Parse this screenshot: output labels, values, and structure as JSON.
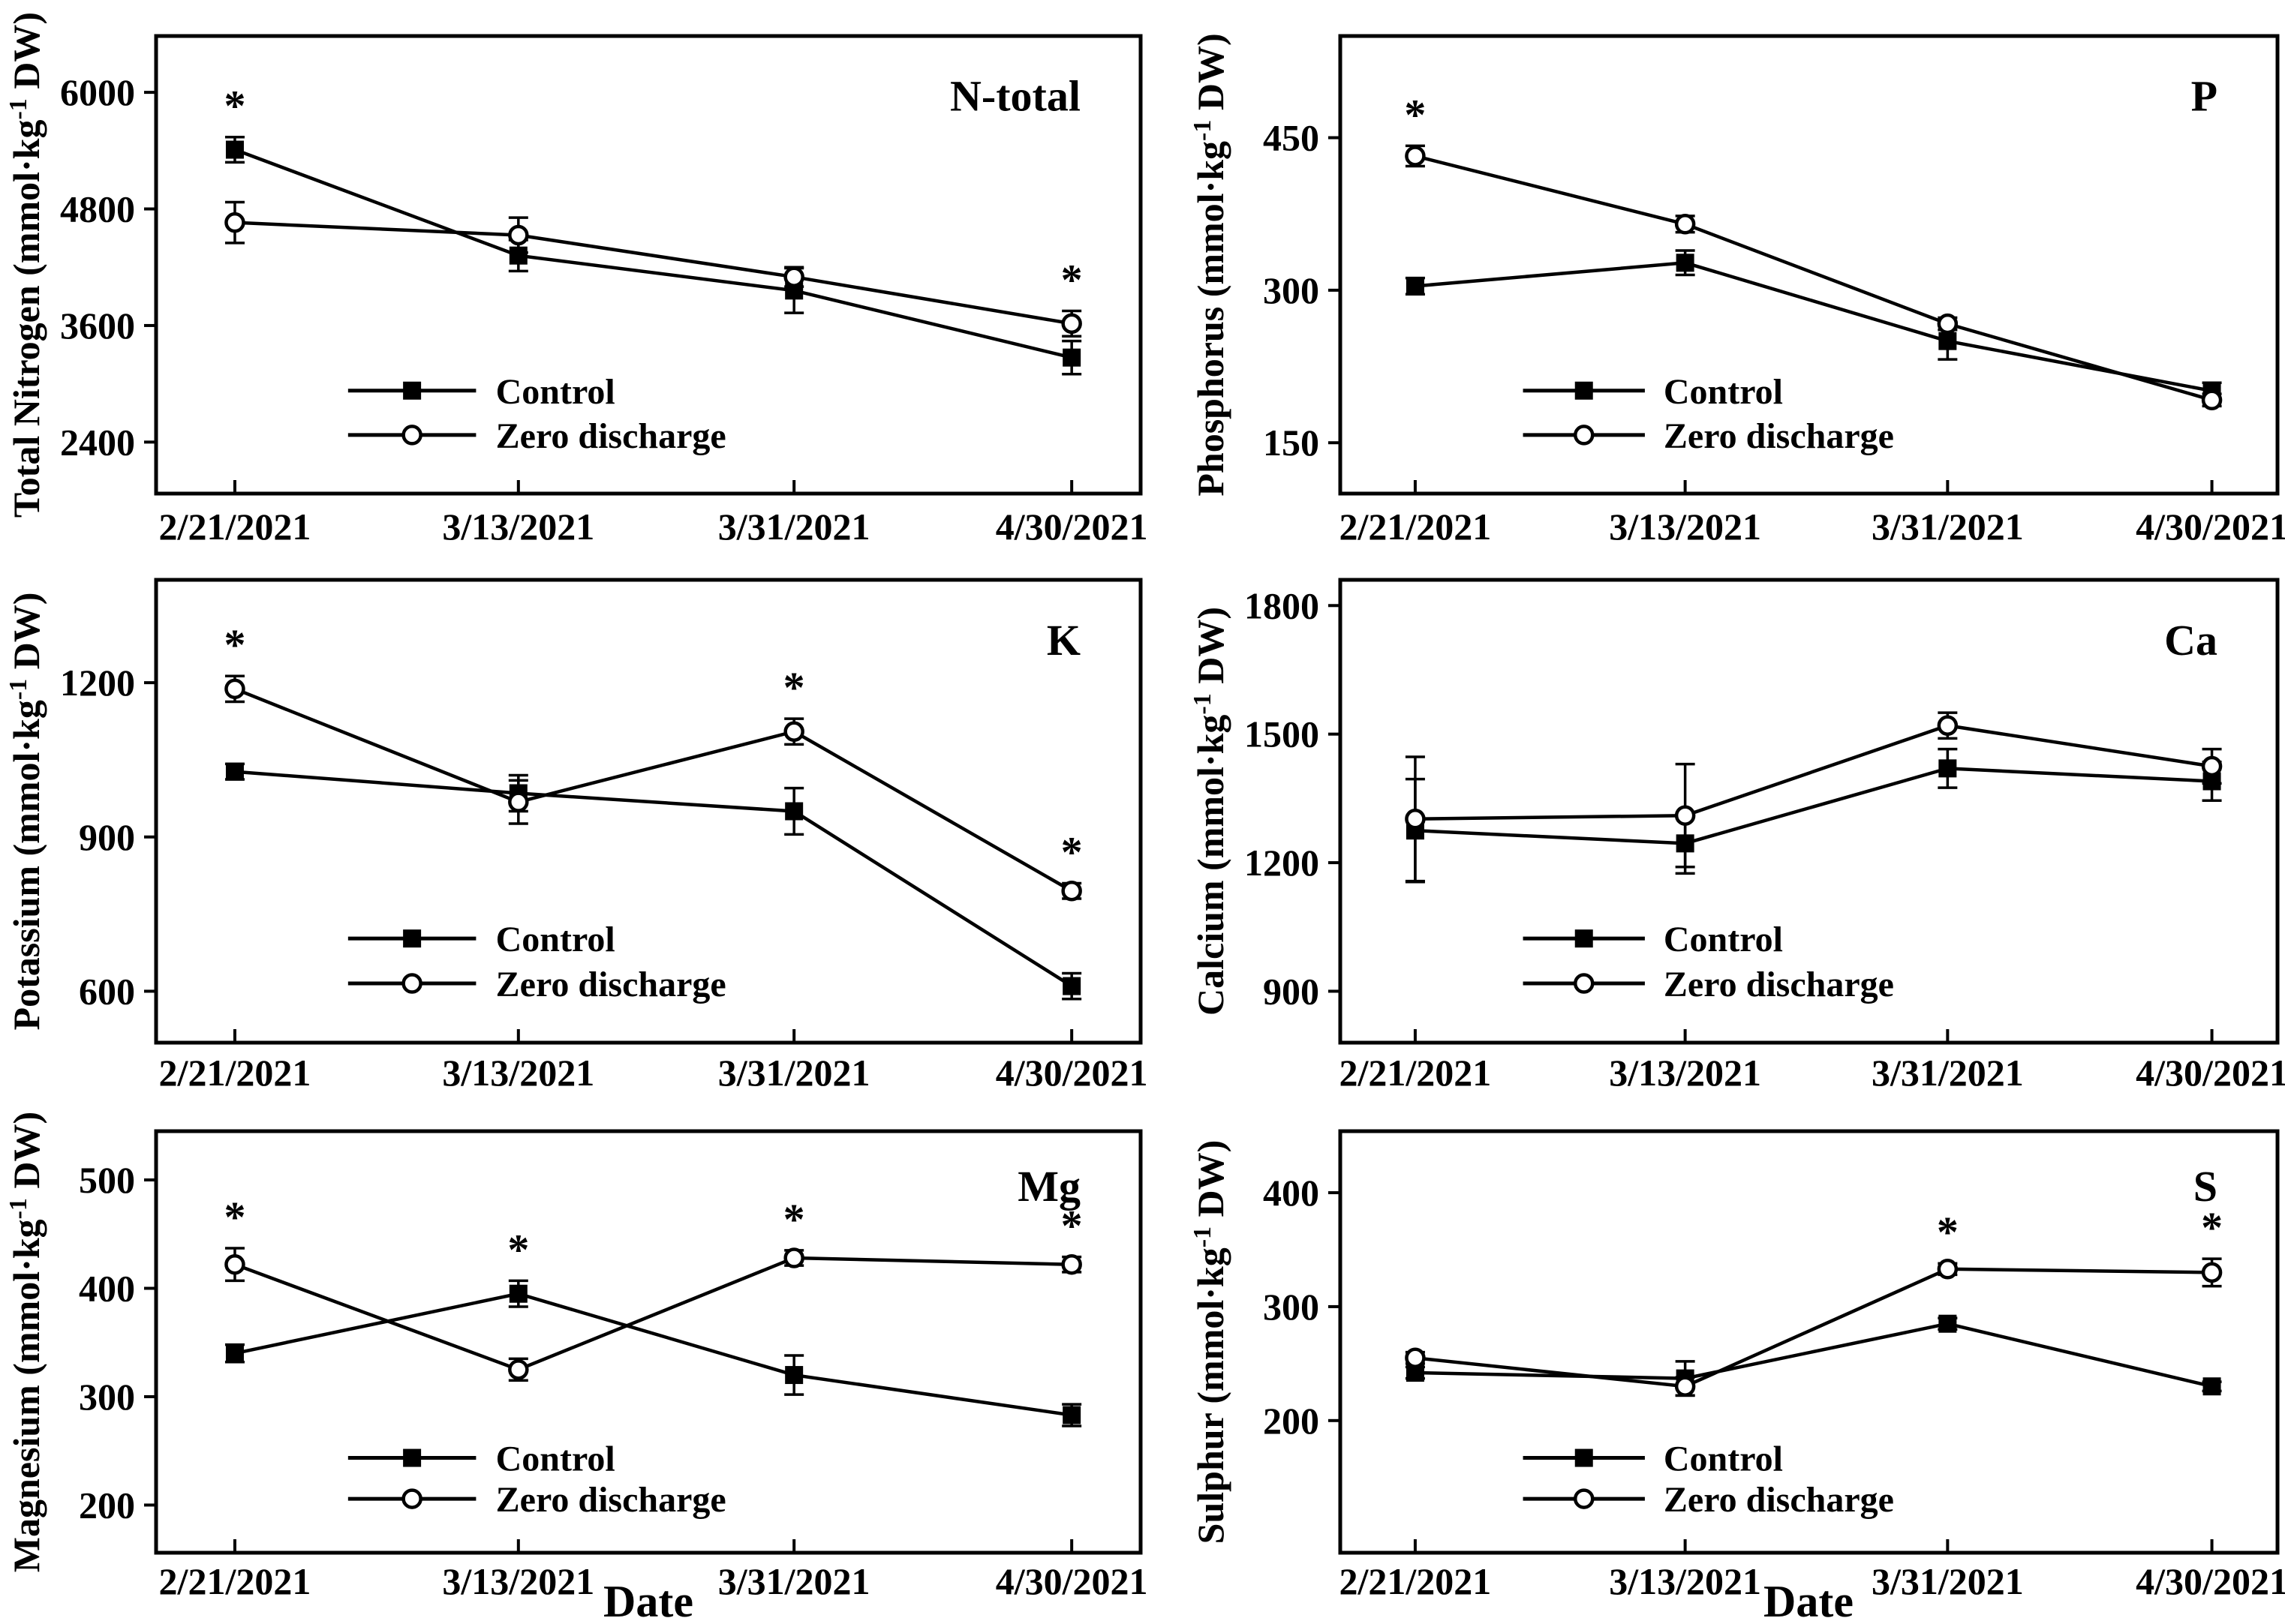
{
  "figure": {
    "background": "#ffffff",
    "ink_color": "#000000",
    "x_axis_title": "Date",
    "x_categories": [
      "2/21/2021",
      "3/13/2021",
      "3/31/2021",
      "4/30/2021"
    ],
    "legend_labels": [
      "Control",
      "Zero discharge"
    ],
    "significance_marker": "*"
  },
  "chart_data": [
    {
      "type": "line",
      "panel_label": "N-total",
      "ylabel": "Total Nitrogen (mmol·kg⁻¹ DW)",
      "x": [
        "2/21/2021",
        "3/13/2021",
        "3/31/2021",
        "4/30/2021"
      ],
      "yticks": [
        2400,
        3600,
        4800,
        6000
      ],
      "ylim": [
        1870,
        6580
      ],
      "grid": false,
      "legend_position": "lower-left",
      "series": [
        {
          "name": "Control",
          "marker": "filled-square",
          "values": [
            5410,
            4320,
            3960,
            3270
          ],
          "errors": [
            130,
            160,
            230,
            170
          ]
        },
        {
          "name": "Zero discharge",
          "marker": "open-circle",
          "values": [
            4660,
            4530,
            4100,
            3620
          ],
          "errors": [
            210,
            180,
            100,
            130
          ]
        }
      ],
      "asterisks": [
        {
          "x": 0,
          "series": 0
        },
        {
          "x": 3,
          "series": 1
        }
      ]
    },
    {
      "type": "line",
      "panel_label": "P",
      "ylabel": "Phosphorus (mmol·kg⁻¹ DW)",
      "x": [
        "2/21/2021",
        "3/13/2021",
        "3/31/2021",
        "4/30/2021"
      ],
      "yticks": [
        150,
        300,
        450
      ],
      "ylim": [
        100,
        550
      ],
      "grid": false,
      "legend_position": "lower-left",
      "series": [
        {
          "name": "Control",
          "marker": "filled-square",
          "values": [
            304,
            327,
            250,
            201
          ],
          "errors": [
            8,
            12,
            18,
            8
          ]
        },
        {
          "name": "Zero discharge",
          "marker": "open-circle",
          "values": [
            432,
            365,
            267,
            192
          ],
          "errors": [
            10,
            8,
            6,
            6
          ]
        }
      ],
      "asterisks": [
        {
          "x": 0,
          "series": 1
        }
      ]
    },
    {
      "type": "line",
      "panel_label": "K",
      "ylabel": "Potassium (mmol·kg⁻¹ DW)",
      "x": [
        "2/21/2021",
        "3/13/2021",
        "3/31/2021",
        "4/30/2021"
      ],
      "yticks": [
        600,
        900,
        1200
      ],
      "ylim": [
        500,
        1400
      ],
      "grid": false,
      "legend_position": "lower-left",
      "series": [
        {
          "name": "Control",
          "marker": "filled-square",
          "values": [
            1027,
            985,
            950,
            610
          ],
          "errors": [
            15,
            35,
            45,
            25
          ]
        },
        {
          "name": "Zero discharge",
          "marker": "open-circle",
          "values": [
            1188,
            968,
            1105,
            795
          ],
          "errors": [
            25,
            42,
            25,
            15
          ]
        }
      ],
      "asterisks": [
        {
          "x": 0,
          "series": 1
        },
        {
          "x": 2,
          "series": 1
        },
        {
          "x": 3,
          "series": 1
        }
      ]
    },
    {
      "type": "line",
      "panel_label": "Ca",
      "ylabel": "Calcium (mmol·kg⁻¹ DW)",
      "x": [
        "2/21/2021",
        "3/13/2021",
        "3/31/2021",
        "4/30/2021"
      ],
      "yticks": [
        900,
        1200,
        1500,
        1800
      ],
      "ylim": [
        780,
        1860
      ],
      "grid": false,
      "legend_position": "lower-left",
      "series": [
        {
          "name": "Control",
          "marker": "filled-square",
          "values": [
            1275,
            1245,
            1420,
            1390
          ],
          "errors": [
            120,
            70,
            45,
            45
          ]
        },
        {
          "name": "Zero discharge",
          "marker": "open-circle",
          "values": [
            1302,
            1310,
            1520,
            1425
          ],
          "errors": [
            145,
            120,
            30,
            40
          ]
        }
      ],
      "asterisks": []
    },
    {
      "type": "line",
      "panel_label": "Mg",
      "ylabel": "Magnesium (mmol·kg⁻¹ DW)",
      "xlabel": "Date",
      "x": [
        "2/21/2021",
        "3/13/2021",
        "3/31/2021",
        "4/30/2021"
      ],
      "yticks": [
        200,
        300,
        400,
        500
      ],
      "ylim": [
        156,
        545
      ],
      "grid": false,
      "legend_position": "lower-left",
      "series": [
        {
          "name": "Control",
          "marker": "filled-square",
          "values": [
            340,
            395,
            320,
            283
          ],
          "errors": [
            8,
            12,
            18,
            10
          ]
        },
        {
          "name": "Zero discharge",
          "marker": "open-circle",
          "values": [
            422,
            325,
            428,
            422
          ],
          "errors": [
            15,
            10,
            7,
            7
          ]
        }
      ],
      "asterisks": [
        {
          "x": 0,
          "series": 1
        },
        {
          "x": 1,
          "series": 0
        },
        {
          "x": 2,
          "series": 1
        },
        {
          "x": 3,
          "series": 1
        }
      ]
    },
    {
      "type": "line",
      "panel_label": "S",
      "ylabel": "Sulphur (mmol·kg⁻¹ DW)",
      "xlabel": "Date",
      "x": [
        "2/21/2021",
        "3/13/2021",
        "3/31/2021",
        "4/30/2021"
      ],
      "yticks": [
        200,
        300,
        400
      ],
      "ylim": [
        84,
        454
      ],
      "grid": false,
      "legend_position": "lower-left",
      "series": [
        {
          "name": "Control",
          "marker": "filled-square",
          "values": [
            242,
            237,
            285,
            230
          ],
          "errors": [
            5,
            15,
            5,
            4
          ]
        },
        {
          "name": "Zero discharge",
          "marker": "open-circle",
          "values": [
            255,
            230,
            333,
            330
          ],
          "errors": [
            5,
            8,
            5,
            12
          ]
        }
      ],
      "asterisks": [
        {
          "x": 2,
          "series": 1
        },
        {
          "x": 3,
          "series": 1
        }
      ]
    }
  ]
}
